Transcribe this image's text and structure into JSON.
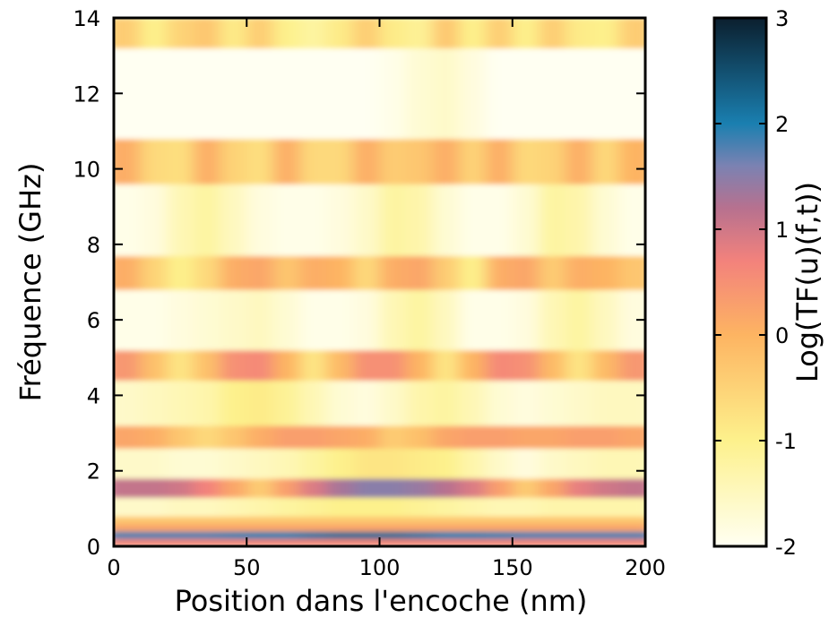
{
  "chart_data": {
    "type": "heatmap",
    "xlabel": "Position dans l'encoche (nm)",
    "ylabel": "Fréquence (GHz)",
    "colorbar_label": "Log(TF(u)(f,t))",
    "x_edges": [
      0,
      10,
      20,
      30,
      40,
      50,
      60,
      70,
      80,
      90,
      100,
      110,
      120,
      130,
      140,
      150,
      160,
      170,
      180,
      190,
      200
    ],
    "y_edges": [
      0,
      0.2,
      0.4,
      0.6,
      0.8,
      1.3,
      1.8,
      2.6,
      3.2,
      4.4,
      5.2,
      6.8,
      7.7,
      9.6,
      10.8,
      13.2,
      14
    ],
    "z": [
      [
        0.6,
        0.6,
        0.6,
        0.6,
        0.6,
        0.6,
        0.6,
        0.6,
        0.6,
        0.6,
        0.6,
        0.6,
        0.6,
        0.6,
        0.6,
        0.6,
        0.6,
        0.6,
        0.6,
        0.6
      ],
      [
        1.8,
        1.8,
        1.8,
        1.8,
        1.9,
        2,
        2,
        2.1,
        2.2,
        2.2,
        2.2,
        2.1,
        2,
        2,
        1.9,
        1.8,
        1.8,
        1.8,
        1.8,
        1.8
      ],
      [
        0.2,
        0.2,
        0.2,
        0.2,
        0.2,
        0.2,
        0.2,
        0.2,
        0.2,
        0.2,
        0.2,
        0.2,
        0.2,
        0.2,
        0.2,
        0.2,
        0.2,
        0.2,
        0.2,
        0.2
      ],
      [
        -0.3,
        -0.3,
        -0.3,
        -0.3,
        -0.3,
        -0.3,
        -0.3,
        -0.3,
        -0.3,
        -0.3,
        -0.3,
        -0.3,
        -0.3,
        -0.3,
        -0.3,
        -0.3,
        -0.3,
        -0.3,
        -0.3,
        -0.3
      ],
      [
        -1.6,
        -1.6,
        -1.5,
        -1.5,
        -1.4,
        -1.3,
        -1.2,
        -1.1,
        -1,
        -1,
        -1,
        -1.1,
        -1.2,
        -1.3,
        -1.4,
        -1.4,
        -1.3,
        -1.3,
        -1.3,
        -1.3
      ],
      [
        1.1,
        1.1,
        1.0,
        0.7,
        0.2,
        -0.4,
        0.3,
        0.9,
        1.3,
        1.5,
        1.5,
        1.4,
        1.2,
        0.9,
        0.3,
        -0.4,
        0.2,
        0.8,
        1.0,
        1.1
      ],
      [
        -1.6,
        -1.6,
        -1.7,
        -1.7,
        -1.6,
        -1.5,
        -1.4,
        -1.2,
        -1.0,
        -0.8,
        -0.8,
        -0.9,
        -1.0,
        -1.3,
        -1.6,
        -1.8,
        -1.6,
        -1.5,
        -1.4,
        -1.4
      ],
      [
        0.2,
        0.1,
        -0.3,
        -0.6,
        -0.3,
        0.1,
        0.3,
        0.3,
        0.2,
        0.1,
        -0.4,
        -0.2,
        0.2,
        0.3,
        0.3,
        0.2,
        0.2,
        0.3,
        0.3,
        0.2
      ],
      [
        -1.6,
        -1.5,
        -1.4,
        -1.3,
        -1.0,
        -0.9,
        -1.1,
        -1.4,
        -1.7,
        -1.8,
        -1.6,
        -1.3,
        -1.2,
        -1.4,
        -1.7,
        -1.8,
        -1.7,
        -1.6,
        -1.5,
        -1.5
      ],
      [
        0.4,
        -0.2,
        -0.8,
        -0.2,
        0.5,
        0.6,
        0.0,
        -0.8,
        -0.1,
        0.5,
        0.5,
        0.0,
        -0.8,
        0.0,
        0.6,
        0.5,
        -0.1,
        -0.8,
        -0.1,
        0.4
      ],
      [
        -1.9,
        -1.9,
        -1.8,
        -1.7,
        -1.6,
        -1.5,
        -1.7,
        -1.9,
        -1.9,
        -1.8,
        -1.4,
        -1.2,
        -1.5,
        -1.9,
        -1.9,
        -1.8,
        -1.4,
        -1.2,
        -1.5,
        -1.8
      ],
      [
        0.1,
        -0.5,
        -1.0,
        -0.6,
        0.1,
        0.2,
        -0.3,
        0.1,
        0.0,
        -0.6,
        0.1,
        0.2,
        -0.4,
        -1.0,
        0.1,
        0.2,
        -0.4,
        0.1,
        0.0,
        -0.3
      ],
      [
        -1.9,
        -1.8,
        -1.4,
        -1.2,
        -1.5,
        -1.8,
        -1.9,
        -1.9,
        -1.8,
        -1.6,
        -1.2,
        -1.3,
        -1.7,
        -1.9,
        -1.9,
        -1.7,
        -1.2,
        -1.3,
        -1.7,
        -1.9
      ],
      [
        0.1,
        -0.6,
        -0.7,
        0.1,
        -0.5,
        -0.7,
        0.1,
        -0.6,
        -0.6,
        0.1,
        -0.4,
        -0.3,
        0.1,
        -0.5,
        0.1,
        -0.6,
        -0.5,
        0.1,
        -0.6,
        0.0
      ],
      [
        -2,
        -2,
        -2,
        -2,
        -2,
        -2,
        -2,
        -2,
        -2,
        -2,
        -1.9,
        -1.7,
        -1.6,
        -1.8,
        -2,
        -2,
        -2,
        -2,
        -2,
        -2
      ],
      [
        -0.4,
        -1.0,
        -0.5,
        -0.3,
        -0.9,
        -0.4,
        -1.0,
        -1.2,
        -0.9,
        -0.4,
        -0.9,
        -1.1,
        -0.3,
        -1.0,
        -0.4,
        -1.0,
        -0.4,
        -0.9,
        -1.0,
        -0.4
      ]
    ],
    "xlim": [
      0,
      200
    ],
    "xticks": [
      0,
      50,
      100,
      150,
      200
    ],
    "ylim": [
      0,
      14
    ],
    "yticks": [
      0,
      2,
      4,
      6,
      8,
      10,
      12,
      14
    ],
    "zlim": [
      -2,
      3
    ],
    "zticks": [
      -2,
      -1,
      0,
      1,
      2,
      3
    ],
    "colorscale": [
      [
        -2,
        "#fffff2"
      ],
      [
        -1,
        "#fdf18c"
      ],
      [
        0,
        "#fdb462"
      ],
      [
        0.7,
        "#f3827c"
      ],
      [
        1.2,
        "#b7718f"
      ],
      [
        1.6,
        "#7b82b2"
      ],
      [
        2.0,
        "#1a7fb0"
      ],
      [
        3.0,
        "#0b1f2e"
      ]
    ]
  }
}
